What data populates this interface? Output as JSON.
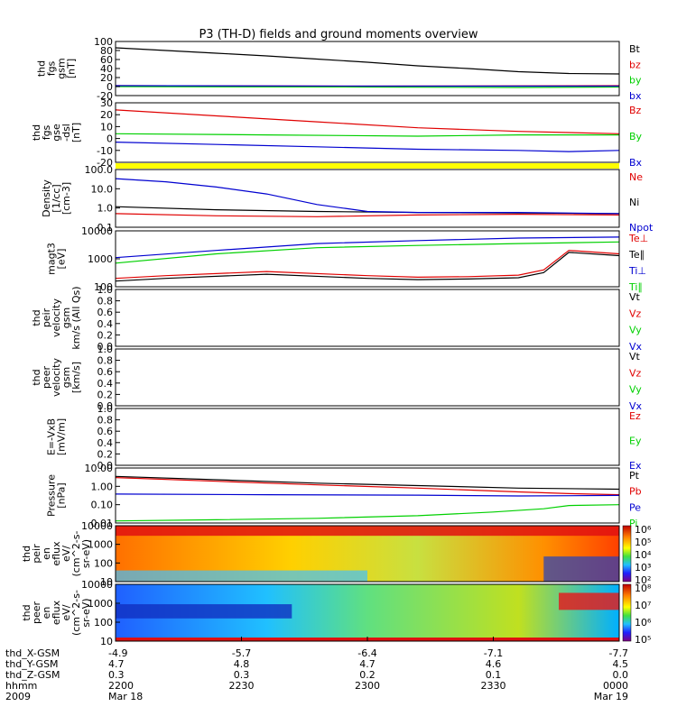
{
  "title": "P3 (TH-D) fields and ground moments overview",
  "colors": {
    "black": "#000000",
    "red": "#e00000",
    "green": "#00d000",
    "blue": "#0000d0",
    "yellow": "#ffff00"
  },
  "chart_data": [
    {
      "id": "p1",
      "type": "line",
      "ylabel": [
        "thd",
        "fgs",
        "gsm",
        "[nT]"
      ],
      "ylim": [
        -20,
        100
      ],
      "ticks": [
        "100",
        "80",
        "60",
        "40",
        "20",
        "0",
        "-20"
      ],
      "legend": [
        "Bt",
        "bz",
        "by",
        "bx"
      ],
      "series": [
        {
          "name": "Bt",
          "color": "black",
          "x": [
            0,
            0.1,
            0.2,
            0.3,
            0.4,
            0.5,
            0.6,
            0.7,
            0.8,
            0.9,
            1.0
          ],
          "y": [
            86,
            80,
            74,
            68,
            61,
            54,
            46,
            40,
            33,
            29,
            28
          ]
        },
        {
          "name": "bz",
          "color": "red",
          "x": [
            0,
            0.5,
            1.0
          ],
          "y": [
            2,
            1,
            2
          ]
        },
        {
          "name": "by",
          "color": "green",
          "x": [
            0,
            0.5,
            0.8,
            1.0
          ],
          "y": [
            0,
            -1,
            -2,
            -1
          ]
        },
        {
          "name": "bx",
          "color": "blue",
          "x": [
            0,
            0.5,
            1.0
          ],
          "y": [
            2,
            1,
            1
          ]
        }
      ]
    },
    {
      "id": "p2",
      "type": "line",
      "ylabel": [
        "thd",
        "fgs",
        "gse",
        "-dsl",
        "[nT]"
      ],
      "ylim": [
        -20,
        30
      ],
      "ticks": [
        "30",
        "20",
        "10",
        "0",
        "-10",
        "-20"
      ],
      "legend": [
        "Bz",
        "By",
        "Bx"
      ],
      "series": [
        {
          "name": "Bz",
          "color": "red",
          "x": [
            0,
            0.2,
            0.4,
            0.6,
            0.8,
            1.0
          ],
          "y": [
            24,
            19,
            14,
            9,
            6,
            4
          ]
        },
        {
          "name": "By",
          "color": "green",
          "x": [
            0,
            0.3,
            0.6,
            0.8,
            1.0
          ],
          "y": [
            4,
            3,
            2,
            3,
            3
          ]
        },
        {
          "name": "Bx",
          "color": "blue",
          "x": [
            0,
            0.2,
            0.4,
            0.6,
            0.8,
            0.9,
            1.0
          ],
          "y": [
            -3,
            -5,
            -7,
            -9,
            -10,
            -11,
            -10
          ]
        }
      ]
    },
    {
      "id": "p3",
      "type": "line",
      "scale": "log",
      "ylabel": [
        "Density",
        "[1/cc]",
        "[cm-3]"
      ],
      "ylim": [
        0.1,
        200
      ],
      "ticks": [
        "100.0",
        "10.0",
        "1.0",
        "0.1"
      ],
      "legend": [
        "Ne",
        "Ni",
        "Npot"
      ],
      "series": [
        {
          "name": "Ne",
          "color": "red",
          "x": [
            0,
            0.2,
            0.4,
            0.6,
            0.8,
            1.0
          ],
          "y": [
            0.6,
            0.45,
            0.4,
            0.5,
            0.55,
            0.5
          ]
        },
        {
          "name": "Ni",
          "color": "black",
          "x": [
            0,
            0.2,
            0.4,
            0.6,
            0.8,
            1.0
          ],
          "y": [
            1.5,
            1.0,
            0.8,
            0.7,
            0.65,
            0.6
          ]
        },
        {
          "name": "Npot",
          "color": "blue",
          "x": [
            0,
            0.1,
            0.2,
            0.3,
            0.4,
            0.5,
            0.6,
            0.8,
            1.0
          ],
          "y": [
            60,
            40,
            20,
            8,
            2,
            0.8,
            0.7,
            0.7,
            0.6
          ]
        }
      ]
    },
    {
      "id": "p4",
      "type": "line",
      "scale": "log",
      "ylabel": [
        "magt3",
        "[eV]"
      ],
      "ylim": [
        100,
        10000
      ],
      "ticks": [
        "10000",
        "1000",
        "100"
      ],
      "legend": [
        "Te⊥",
        "Te∥",
        "Ti⊥",
        "Ti∥"
      ],
      "series": [
        {
          "name": "Te⊥",
          "color": "red",
          "x": [
            0,
            0.1,
            0.3,
            0.5,
            0.6,
            0.7,
            0.8,
            0.85,
            0.9,
            1.0
          ],
          "y": [
            200,
            250,
            350,
            250,
            220,
            230,
            260,
            400,
            2000,
            1500
          ]
        },
        {
          "name": "Te∥",
          "color": "black",
          "x": [
            0,
            0.1,
            0.3,
            0.5,
            0.6,
            0.7,
            0.8,
            0.85,
            0.9,
            1.0
          ],
          "y": [
            160,
            200,
            280,
            200,
            180,
            190,
            210,
            320,
            1700,
            1300
          ]
        },
        {
          "name": "Ti⊥",
          "color": "blue",
          "x": [
            0,
            0.2,
            0.4,
            0.6,
            0.8,
            1.0
          ],
          "y": [
            1100,
            2000,
            3500,
            4500,
            5500,
            6000
          ]
        },
        {
          "name": "Ti∥",
          "color": "green",
          "x": [
            0,
            0.2,
            0.4,
            0.6,
            0.8,
            1.0
          ],
          "y": [
            700,
            1500,
            2500,
            3000,
            3500,
            4000
          ]
        }
      ]
    },
    {
      "id": "p5",
      "type": "line",
      "ylabel": [
        "thd",
        "peir",
        "velocity",
        "gsm",
        "km/s (All Qs)"
      ],
      "ylim": [
        0,
        1
      ],
      "ticks": [
        "1.0",
        "0.8",
        "0.6",
        "0.4",
        "0.2",
        "0.0"
      ],
      "legend": [
        "Vt",
        "Vz",
        "Vy",
        "Vx"
      ],
      "series": []
    },
    {
      "id": "p6",
      "type": "line",
      "ylabel": [
        "thd",
        "peer",
        "velocity",
        "gsm",
        "[km/s]"
      ],
      "ylim": [
        0,
        1
      ],
      "ticks": [
        "1.0",
        "0.8",
        "0.6",
        "0.4",
        "0.2",
        "0.0"
      ],
      "legend": [
        "Vt",
        "Vz",
        "Vy",
        "Vx"
      ],
      "series": []
    },
    {
      "id": "p7",
      "type": "line",
      "ylabel": [
        "E=-VxB",
        "[mV/m]"
      ],
      "ylim": [
        0,
        1
      ],
      "ticks": [
        "1.0",
        "0.8",
        "0.6",
        "0.4",
        "0.2",
        "0.0"
      ],
      "legend": [
        "Ez",
        "Ey",
        "Ex"
      ],
      "series": []
    },
    {
      "id": "p8",
      "type": "line",
      "scale": "log",
      "ylabel": [
        "Pressure",
        "[nPa]"
      ],
      "ylim": [
        0.01,
        10
      ],
      "ticks": [
        "10.00",
        "1.00",
        "0.10",
        "0.01"
      ],
      "legend": [
        "Pt",
        "Pb",
        "Pe",
        "Pi"
      ],
      "series": [
        {
          "name": "Pt",
          "color": "black",
          "x": [
            0,
            0.2,
            0.4,
            0.6,
            0.8,
            1.0
          ],
          "y": [
            3.5,
            2.3,
            1.5,
            1.1,
            0.8,
            0.7
          ]
        },
        {
          "name": "Pb",
          "color": "red",
          "x": [
            0,
            0.2,
            0.4,
            0.6,
            0.8,
            0.9,
            1.0
          ],
          "y": [
            3.0,
            1.9,
            1.2,
            0.8,
            0.5,
            0.4,
            0.35
          ]
        },
        {
          "name": "Pe",
          "color": "blue",
          "x": [
            0,
            0.3,
            0.6,
            0.8,
            1.0
          ],
          "y": [
            0.38,
            0.35,
            0.33,
            0.3,
            0.32
          ]
        },
        {
          "name": "Pi",
          "color": "green",
          "x": [
            0,
            0.2,
            0.4,
            0.6,
            0.75,
            0.85,
            0.9,
            1.0
          ],
          "y": [
            0.013,
            0.015,
            0.018,
            0.025,
            0.04,
            0.06,
            0.09,
            0.1
          ]
        }
      ]
    },
    {
      "id": "p9",
      "type": "heatmap",
      "ylabel": [
        "thd",
        "peir",
        "en",
        "eflux",
        "eV/",
        "(cm^2-s-",
        "sr-eV)"
      ],
      "ticks": [
        "10000",
        "1000",
        "100",
        "10"
      ],
      "cbar_ticks": [
        "10⁶",
        "10⁵",
        "10⁴",
        "10³",
        "10²"
      ]
    },
    {
      "id": "p10",
      "type": "heatmap",
      "ylabel": [
        "thd",
        "peer",
        "en",
        "eflux",
        "eV/",
        "(cm^2-s-",
        "sr-eV)"
      ],
      "ticks": [
        "10000",
        "1000",
        "100",
        "10"
      ],
      "cbar_ticks": [
        "10⁸",
        "10⁷",
        "10⁶",
        "10⁵"
      ]
    }
  ],
  "footer": {
    "rows": [
      {
        "label": "thd_X-GSM",
        "values": [
          "-4.9",
          "-5.7",
          "-6.4",
          "-7.1",
          "-7.7"
        ]
      },
      {
        "label": "thd_Y-GSM",
        "values": [
          "4.7",
          "4.8",
          "4.7",
          "4.6",
          "4.5"
        ]
      },
      {
        "label": "thd_Z-GSM",
        "values": [
          "0.3",
          "0.3",
          "0.2",
          "0.1",
          "0.0"
        ]
      },
      {
        "label": "hhmm",
        "values": [
          "2200",
          "2230",
          "2300",
          "2330",
          "0000"
        ]
      },
      {
        "label": "2009",
        "values": [
          "Mar 18",
          "",
          "",
          "",
          "Mar 19"
        ]
      }
    ]
  }
}
